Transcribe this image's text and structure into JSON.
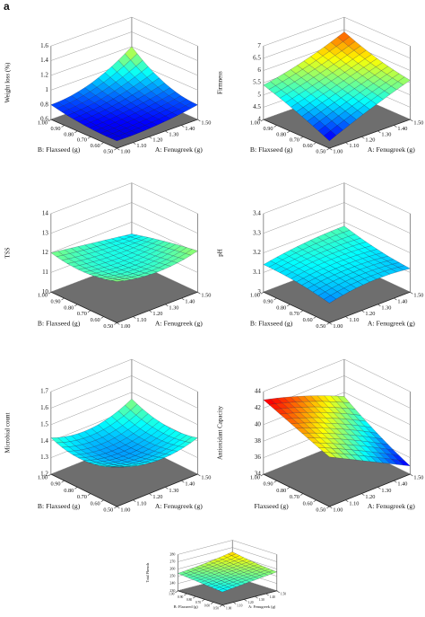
{
  "panel_label": "a",
  "chart_data": [
    {
      "type": "surface",
      "z_label": "Weight loss (%)",
      "x_label": "A: Fenugreek (g)",
      "y_label": "B: Flaxseed (g)",
      "x": [
        1,
        1.25,
        1.5
      ],
      "y": [
        0.5,
        0.75,
        1
      ],
      "z": [
        [
          0.7,
          0.72,
          0.8
        ],
        [
          0.72,
          0.78,
          0.9
        ],
        [
          0.8,
          0.9,
          1.2
        ]
      ],
      "xlim": [
        1,
        1.5
      ],
      "ylim": [
        0.5,
        1
      ],
      "zlim": [
        0.6,
        1.6
      ],
      "zticks": [
        0.6,
        0.8,
        1,
        1.2,
        1.4,
        1.6
      ],
      "xticks": [
        {
          "value": 1,
          "label": "1.00"
        },
        {
          "value": 1.1,
          "label": "1.10"
        },
        {
          "value": 1.2,
          "label": "1.20"
        },
        {
          "value": 1.3,
          "label": "1.30"
        },
        {
          "value": 1.4,
          "label": "1.40"
        },
        {
          "value": 1.5,
          "label": "1.50"
        }
      ],
      "yticks": [
        {
          "value": 0.5,
          "label": "0.50"
        },
        {
          "value": 0.6,
          "label": "0.60"
        },
        {
          "value": 0.7,
          "label": "0.70"
        },
        {
          "value": 0.8,
          "label": "0.80"
        },
        {
          "value": 0.9,
          "label": "0.90"
        },
        {
          "value": 1,
          "label": "1.00"
        }
      ]
    },
    {
      "type": "surface",
      "z_label": "Firmness",
      "x_label": "A: Fenugreek (g)",
      "y_label": "B: Flaxseed (g)",
      "x": [
        1,
        1.25,
        1.5
      ],
      "y": [
        0.5,
        0.75,
        1
      ],
      "z": [
        [
          4.3,
          5.0,
          5.6
        ],
        [
          4.9,
          5.4,
          5.9
        ],
        [
          5.4,
          5.8,
          6.4
        ]
      ],
      "xlim": [
        1,
        1.5
      ],
      "ylim": [
        0.5,
        1
      ],
      "zlim": [
        4,
        7
      ],
      "zticks": [
        4,
        4.5,
        5,
        5.5,
        6,
        6.5,
        7
      ],
      "xticks": [
        {
          "value": 1,
          "label": "1.00"
        },
        {
          "value": 1.1,
          "label": "1.10"
        },
        {
          "value": 1.2,
          "label": "1.20"
        },
        {
          "value": 1.3,
          "label": "1.30"
        },
        {
          "value": 1.4,
          "label": "1.40"
        },
        {
          "value": 1.5,
          "label": "1.50"
        }
      ],
      "yticks": [
        {
          "value": 0.5,
          "label": "0.50"
        },
        {
          "value": 0.6,
          "label": "0.60"
        },
        {
          "value": 0.7,
          "label": "0.70"
        },
        {
          "value": 0.8,
          "label": "0.80"
        },
        {
          "value": 0.9,
          "label": "0.90"
        },
        {
          "value": 1,
          "label": "1.00"
        }
      ]
    },
    {
      "type": "surface",
      "z_label": "TSS",
      "x_label": "A: Fenugreek (g)",
      "y_label": "B: Flaxseed (g)",
      "x": [
        1,
        1.25,
        1.5
      ],
      "y": [
        0.5,
        0.75,
        1
      ],
      "z": [
        [
          12.1,
          11.8,
          12.1
        ],
        [
          11.8,
          11.6,
          11.8
        ],
        [
          12.0,
          11.7,
          11.4
        ]
      ],
      "xlim": [
        1,
        1.5
      ],
      "ylim": [
        0.5,
        1
      ],
      "zlim": [
        10,
        14
      ],
      "zticks": [
        10,
        11,
        12,
        13,
        14
      ],
      "xticks": [
        {
          "value": 1,
          "label": "1.00"
        },
        {
          "value": 1.1,
          "label": "1.10"
        },
        {
          "value": 1.2,
          "label": "1.20"
        },
        {
          "value": 1.3,
          "label": "1.30"
        },
        {
          "value": 1.4,
          "label": "1.40"
        },
        {
          "value": 1.5,
          "label": "1.50"
        }
      ],
      "yticks": [
        {
          "value": 0.5,
          "label": "0.50"
        },
        {
          "value": 0.6,
          "label": "0.60"
        },
        {
          "value": 0.7,
          "label": "0.70"
        },
        {
          "value": 0.8,
          "label": "0.80"
        },
        {
          "value": 0.9,
          "label": "0.90"
        },
        {
          "value": 1,
          "label": "1.00"
        }
      ]
    },
    {
      "type": "surface",
      "z_label": "pH",
      "x_label": "A: Fenugreek (g)",
      "y_label": "B: Flaxseed (g)",
      "x": [
        1,
        1.25,
        1.5
      ],
      "y": [
        0.5,
        0.75,
        1
      ],
      "z": [
        [
          3.1,
          3.13,
          3.12
        ],
        [
          3.13,
          3.15,
          3.14
        ],
        [
          3.14,
          3.17,
          3.18
        ]
      ],
      "xlim": [
        1,
        1.5
      ],
      "ylim": [
        0.5,
        1
      ],
      "zlim": [
        3,
        3.4
      ],
      "zticks": [
        3,
        3.1,
        3.2,
        3.3,
        3.4
      ],
      "xticks": [
        {
          "value": 1,
          "label": "1.00"
        },
        {
          "value": 1.1,
          "label": "1.10"
        },
        {
          "value": 1.2,
          "label": "1.20"
        },
        {
          "value": 1.3,
          "label": "1.30"
        },
        {
          "value": 1.4,
          "label": "1.40"
        },
        {
          "value": 1.5,
          "label": "1.50"
        }
      ],
      "yticks": [
        {
          "value": 0.5,
          "label": "0.50"
        },
        {
          "value": 0.6,
          "label": "0.60"
        },
        {
          "value": 0.7,
          "label": "0.70"
        },
        {
          "value": 0.8,
          "label": "0.80"
        },
        {
          "value": 0.9,
          "label": "0.90"
        },
        {
          "value": 1,
          "label": "1.00"
        }
      ]
    },
    {
      "type": "surface",
      "z_label": "Microbial count",
      "x_label": "A: Fenugreek (g)",
      "y_label": "B: Flaxseed (g)",
      "x": [
        1,
        1.25,
        1.5
      ],
      "y": [
        0.5,
        0.75,
        1
      ],
      "z": [
        [
          1.44,
          1.38,
          1.42
        ],
        [
          1.38,
          1.34,
          1.4
        ],
        [
          1.42,
          1.38,
          1.46
        ]
      ],
      "xlim": [
        1,
        1.5
      ],
      "ylim": [
        0.5,
        1
      ],
      "zlim": [
        1.2,
        1.7
      ],
      "zticks": [
        1.2,
        1.3,
        1.4,
        1.5,
        1.6,
        1.7
      ],
      "xticks": [
        {
          "value": 1,
          "label": "1.00"
        },
        {
          "value": 1.1,
          "label": "1.10"
        },
        {
          "value": 1.2,
          "label": "1.20"
        },
        {
          "value": 1.3,
          "label": "1.30"
        },
        {
          "value": 1.4,
          "label": "1.40"
        },
        {
          "value": 1.5,
          "label": "1.50"
        }
      ],
      "yticks": [
        {
          "value": 0.5,
          "label": "0.50"
        },
        {
          "value": 0.6,
          "label": "0.60"
        },
        {
          "value": 0.7,
          "label": "0.70"
        },
        {
          "value": 0.8,
          "label": "0.80"
        },
        {
          "value": 0.9,
          "label": "0.90"
        },
        {
          "value": 1,
          "label": "1.00"
        }
      ]
    },
    {
      "type": "surface",
      "z_label": "Antioxidant Capacity",
      "x_label": "A: Fenugreek (g)",
      "y_label": "Flaxseed (g)",
      "x": [
        1,
        1.25,
        1.5
      ],
      "y": [
        0.5,
        0.75,
        1
      ],
      "z": [
        [
          40,
          37.5,
          35
        ],
        [
          41.5,
          39.5,
          37
        ],
        [
          43,
          41.5,
          39.5
        ]
      ],
      "xlim": [
        1,
        1.5
      ],
      "ylim": [
        0.5,
        1
      ],
      "zlim": [
        34,
        44
      ],
      "zticks": [
        34,
        36,
        38,
        40,
        42,
        44
      ],
      "xticks": [
        {
          "value": 1,
          "label": "1.00"
        },
        {
          "value": 1.1,
          "label": "1.10"
        },
        {
          "value": 1.2,
          "label": "1.20"
        },
        {
          "value": 1.3,
          "label": "1.30"
        },
        {
          "value": 1.4,
          "label": "1.40"
        },
        {
          "value": 1.5,
          "label": "1.50"
        }
      ],
      "yticks": [
        {
          "value": 0.5,
          "label": "0.50"
        },
        {
          "value": 0.6,
          "label": "0.60"
        },
        {
          "value": 0.7,
          "label": "0.70"
        },
        {
          "value": 0.8,
          "label": "0.80"
        },
        {
          "value": 0.9,
          "label": "0.90"
        },
        {
          "value": 1,
          "label": "1.00"
        }
      ]
    },
    {
      "type": "surface",
      "z_label": "Total Phenols",
      "x_label": "A: Fenugreek (g)",
      "y_label": "B: Flaxseed (g)",
      "x": [
        1,
        1.25,
        1.5
      ],
      "y": [
        0.5,
        0.75,
        1
      ],
      "z": [
        [
          248,
          252,
          256
        ],
        [
          251,
          255,
          259
        ],
        [
          254,
          258,
          264
        ]
      ],
      "xlim": [
        1,
        1.5
      ],
      "ylim": [
        0.5,
        1
      ],
      "zlim": [
        230,
        280
      ],
      "zticks": [
        230,
        240,
        250,
        260,
        270,
        280
      ],
      "xticks": [
        {
          "value": 1,
          "label": "1.00"
        },
        {
          "value": 1.1,
          "label": "1.10"
        },
        {
          "value": 1.2,
          "label": "1.20"
        },
        {
          "value": 1.3,
          "label": "1.30"
        },
        {
          "value": 1.4,
          "label": "1.40"
        },
        {
          "value": 1.5,
          "label": "1.50"
        }
      ],
      "yticks": [
        {
          "value": 0.5,
          "label": "0.50"
        },
        {
          "value": 0.6,
          "label": "0.60"
        },
        {
          "value": 0.7,
          "label": "0.70"
        },
        {
          "value": 0.8,
          "label": "0.80"
        },
        {
          "value": 0.9,
          "label": "0.90"
        },
        {
          "value": 1,
          "label": "1.00"
        }
      ]
    }
  ]
}
